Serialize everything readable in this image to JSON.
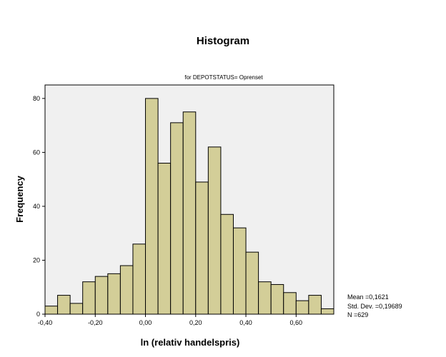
{
  "chart_data": {
    "type": "bar",
    "title": "Histogram",
    "subtitle": "for DEPOTSTATUS= Oprenset",
    "xlabel": "ln (relativ handelspris)",
    "ylabel": "Frequency",
    "xlim": [
      -0.4,
      0.75
    ],
    "ylim": [
      0,
      85
    ],
    "x_ticks": [
      -0.4,
      -0.2,
      0.0,
      0.2,
      0.4,
      0.6
    ],
    "x_tick_labels": [
      "-0,40",
      "-0,20",
      "0,00",
      "0,20",
      "0,40",
      "0,60"
    ],
    "y_ticks": [
      0,
      20,
      40,
      60,
      80
    ],
    "y_tick_labels": [
      "0",
      "20",
      "40",
      "60",
      "80"
    ],
    "bin_start": -0.4,
    "bin_width": 0.05,
    "values": [
      3,
      7,
      4,
      12,
      14,
      15,
      18,
      26,
      80,
      56,
      71,
      75,
      49,
      62,
      37,
      32,
      23,
      12,
      11,
      8,
      5,
      7,
      2
    ],
    "grid": false,
    "colors": {
      "bar_fill": "#d3ce98",
      "plot_bg": "#f0f0f0",
      "bar_stroke": "#000000"
    },
    "stats": {
      "mean": "Mean =0,1621",
      "std": "Std. Dev. =0,19689",
      "n": "N =629"
    }
  }
}
